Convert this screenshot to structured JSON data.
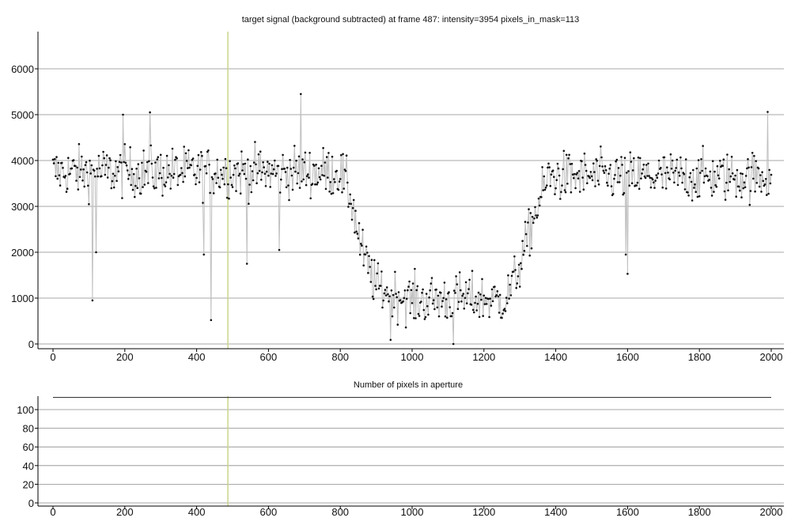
{
  "chart_data": [
    {
      "type": "scatter",
      "title": "target signal (background subtracted) at frame 487: intensity=3954 pixels_in_mask=113",
      "xlabel": "",
      "ylabel": "",
      "xlim": [
        -20,
        2030
      ],
      "ylim": [
        -100,
        6700
      ],
      "xticks": [
        "0",
        "200",
        "400",
        "600",
        "800",
        "1000",
        "1200",
        "1400",
        "1600",
        "1800",
        "2000"
      ],
      "yticks": [
        "0",
        "1000",
        "2000",
        "3000",
        "4000",
        "5000",
        "6000"
      ],
      "grid": "horizontal",
      "current_frame": 487,
      "marker_color": "#c8d68a",
      "line_color": "#c0c0c0",
      "point_color": "#111111",
      "series": [
        {
          "n_frames": 2000,
          "profile": [
            {
              "x": 0,
              "y": 3750,
              "noise": 300
            },
            {
              "x": 800,
              "y": 3750,
              "noise": 300
            },
            {
              "x": 830,
              "y": 3200,
              "noise": 320
            },
            {
              "x": 860,
              "y": 2000,
              "noise": 300
            },
            {
              "x": 900,
              "y": 1250,
              "noise": 280
            },
            {
              "x": 1000,
              "y": 950,
              "noise": 300
            },
            {
              "x": 1150,
              "y": 1000,
              "noise": 300
            },
            {
              "x": 1260,
              "y": 950,
              "noise": 280
            },
            {
              "x": 1300,
              "y": 1700,
              "noise": 280
            },
            {
              "x": 1340,
              "y": 2800,
              "noise": 300
            },
            {
              "x": 1380,
              "y": 3650,
              "noise": 300
            },
            {
              "x": 2000,
              "y": 3650,
              "noise": 300
            }
          ],
          "outliers": [
            {
              "x": 110,
              "y": 950
            },
            {
              "x": 120,
              "y": 2000
            },
            {
              "x": 195,
              "y": 5000
            },
            {
              "x": 270,
              "y": 5050
            },
            {
              "x": 420,
              "y": 1950
            },
            {
              "x": 440,
              "y": 520
            },
            {
              "x": 540,
              "y": 1750
            },
            {
              "x": 630,
              "y": 2050
            },
            {
              "x": 690,
              "y": 5450
            },
            {
              "x": 940,
              "y": 90
            },
            {
              "x": 1115,
              "y": 0
            },
            {
              "x": 1595,
              "y": 1950
            },
            {
              "x": 1600,
              "y": 1530
            },
            {
              "x": 1990,
              "y": 5060
            }
          ]
        }
      ]
    },
    {
      "type": "line",
      "title": "Number of pixels in aperture",
      "xlabel": "",
      "ylabel": "",
      "xlim": [
        -20,
        2030
      ],
      "ylim": [
        -1,
        126
      ],
      "xticks": [
        "0",
        "200",
        "400",
        "600",
        "800",
        "1000",
        "1200",
        "1400",
        "1600",
        "1800",
        "2000"
      ],
      "yticks": [
        "0",
        "20",
        "40",
        "60",
        "80",
        "100"
      ],
      "grid": "horizontal",
      "current_frame": 487,
      "series": [
        {
          "x": [
            0,
            2000
          ],
          "values": [
            113,
            113
          ]
        }
      ]
    }
  ]
}
